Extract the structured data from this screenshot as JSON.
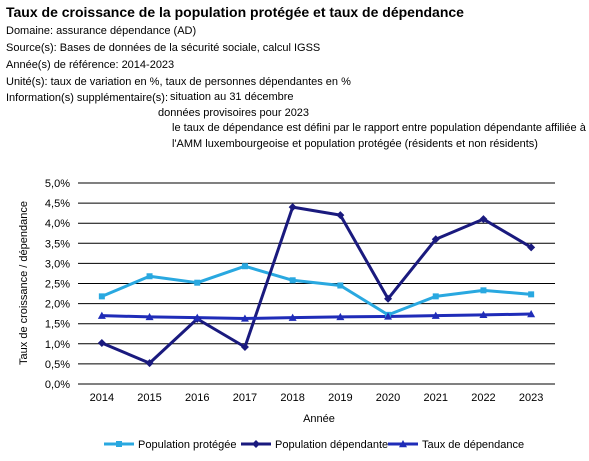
{
  "header": {
    "title": "Taux de croissance de la population protégée et taux de dépendance",
    "domain": "Domaine: assurance dépendance (AD)",
    "source": "Source(s): Bases de données de la sécurité sociale, calcul IGSS",
    "years": "Année(s) de référence: 2014-2023",
    "units": "Unité(s): taux de variation en %, taux de personnes dépendantes en %",
    "info_label": "Information(s) supplémentaire(s):",
    "info_lines": [
      "situation au 31 décembre",
      "données provisoires pour 2023",
      "le taux de dépendance est défini par le rapport entre population dépendante affiliée à",
      "l'AMM luxembourgeoise et population protégée (résidents et non résidents)"
    ]
  },
  "chart_data": {
    "type": "line",
    "categories": [
      "2014",
      "2015",
      "2016",
      "2017",
      "2018",
      "2019",
      "2020",
      "2021",
      "2022",
      "2023"
    ],
    "series": [
      {
        "name": "Population protégée",
        "color": "#29a8e0",
        "marker": "square",
        "values": [
          2.18,
          2.68,
          2.52,
          2.93,
          2.58,
          2.45,
          1.72,
          2.18,
          2.33,
          2.23
        ]
      },
      {
        "name": "Population dépendante",
        "color": "#1a1a7e",
        "marker": "diamond",
        "values": [
          1.02,
          0.52,
          1.62,
          0.92,
          4.4,
          4.2,
          2.12,
          3.6,
          4.1,
          3.4
        ]
      },
      {
        "name": "Taux de dépendance",
        "color": "#1f2cb8",
        "marker": "triangle",
        "values": [
          1.7,
          1.67,
          1.65,
          1.63,
          1.65,
          1.67,
          1.68,
          1.7,
          1.72,
          1.74
        ]
      }
    ],
    "ylabel": "Taux de croissance / dépendance",
    "xlabel": "Année",
    "yticks": [
      "0,0%",
      "0,5%",
      "1,0%",
      "1,5%",
      "2,0%",
      "2,5%",
      "3,0%",
      "3,5%",
      "4,0%",
      "4,5%",
      "5,0%"
    ],
    "ylim": [
      0,
      5
    ],
    "grid": true,
    "legend": "bottom"
  }
}
